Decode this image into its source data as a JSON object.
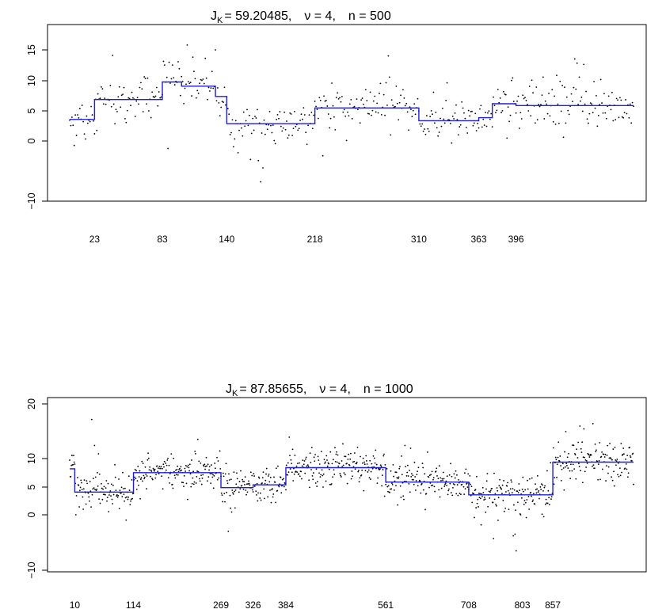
{
  "chart_data": [
    {
      "type": "scatter",
      "title_parts": {
        "j_label": "J",
        "j_sub": "K",
        "j_value": "= 59.20485,",
        "nu_label": "ν = 4,",
        "n_label": "n = 500"
      },
      "n": 500,
      "ylim": [
        -10,
        18
      ],
      "yticks": [
        -10,
        0,
        5,
        10,
        15
      ],
      "ytick_labels": [
        "−10",
        "0",
        "5",
        "10",
        "15"
      ],
      "changepoints": [
        23,
        83,
        140,
        218,
        310,
        363,
        396
      ],
      "changepoint_labels": [
        "23",
        "83",
        "140",
        "218",
        "310",
        "363",
        "396"
      ],
      "segments": [
        {
          "start": 1,
          "end": 23,
          "mean": 3.5
        },
        {
          "start": 23,
          "end": 83,
          "mean": 6.8
        },
        {
          "start": 83,
          "end": 100,
          "mean": 9.7
        },
        {
          "start": 100,
          "end": 130,
          "mean": 9.0
        },
        {
          "start": 130,
          "end": 140,
          "mean": 7.3
        },
        {
          "start": 140,
          "end": 218,
          "mean": 2.8
        },
        {
          "start": 218,
          "end": 310,
          "mean": 5.4
        },
        {
          "start": 310,
          "end": 363,
          "mean": 3.3
        },
        {
          "start": 363,
          "end": 375,
          "mean": 3.8
        },
        {
          "start": 375,
          "end": 396,
          "mean": 6.1
        },
        {
          "start": 396,
          "end": 500,
          "mean": 5.8
        }
      ],
      "noise_sd": 1.6,
      "outliers": [
        [
          150,
          -2.0
        ],
        [
          168,
          -3.3
        ],
        [
          170,
          -6.8
        ],
        [
          172,
          -4.5
        ],
        [
          183,
          -0.5
        ],
        [
          225,
          -2.5
        ],
        [
          233,
          9.5
        ],
        [
          283,
          14.0
        ],
        [
          284,
          10.5
        ],
        [
          290,
          9.0
        ],
        [
          323,
          8.0
        ],
        [
          420,
          10.5
        ],
        [
          432,
          10.8
        ],
        [
          435,
          9.8
        ],
        [
          448,
          13.5
        ],
        [
          450,
          12.8
        ],
        [
          452,
          10.5
        ],
        [
          456,
          12.6
        ],
        [
          105,
          15.8
        ],
        [
          110,
          13.8
        ],
        [
          121,
          13.6
        ],
        [
          130,
          15.0
        ],
        [
          5,
          -0.8
        ],
        [
          88,
          -1.3
        ],
        [
          92,
          12.5
        ],
        [
          143,
          1.0
        ],
        [
          146,
          -1.0
        ]
      ],
      "line_color": "#1f1fd0",
      "point_color": "#000000"
    },
    {
      "type": "scatter",
      "title_parts": {
        "j_label": "J",
        "j_sub": "K",
        "j_value": "= 87.85655,",
        "nu_label": "ν = 4,",
        "n_label": "n = 1000"
      },
      "n": 1000,
      "ylim": [
        -10,
        20
      ],
      "yticks": [
        -10,
        0,
        5,
        10,
        20
      ],
      "ytick_labels": [
        "−10",
        "0",
        "5",
        "10",
        "20"
      ],
      "changepoints": [
        10,
        114,
        269,
        326,
        384,
        561,
        708,
        803,
        857
      ],
      "changepoint_labels": [
        "10",
        "114",
        "269",
        "326",
        "384",
        "561",
        "708",
        "803",
        "857"
      ],
      "segments": [
        {
          "start": 1,
          "end": 10,
          "mean": 8.3
        },
        {
          "start": 10,
          "end": 114,
          "mean": 4.1
        },
        {
          "start": 114,
          "end": 269,
          "mean": 7.6
        },
        {
          "start": 269,
          "end": 326,
          "mean": 4.9
        },
        {
          "start": 326,
          "end": 384,
          "mean": 5.4
        },
        {
          "start": 384,
          "end": 561,
          "mean": 8.5
        },
        {
          "start": 561,
          "end": 708,
          "mean": 5.9
        },
        {
          "start": 708,
          "end": 857,
          "mean": 3.6
        },
        {
          "start": 857,
          "end": 1000,
          "mean": 9.5
        }
      ],
      "noise_sd": 1.7,
      "outliers": [
        [
          40,
          17.2
        ],
        [
          45,
          12.5
        ],
        [
          52,
          11.0
        ],
        [
          282,
          -3.0
        ],
        [
          288,
          0.5
        ],
        [
          390,
          14.0
        ],
        [
          595,
          12.5
        ],
        [
          605,
          12.0
        ],
        [
          760,
          -1.0
        ],
        [
          790,
          -3.5
        ],
        [
          792,
          -6.5
        ],
        [
          800,
          0.0
        ],
        [
          810,
          -0.5
        ],
        [
          815,
          1.0
        ],
        [
          880,
          15.0
        ],
        [
          905,
          16.0
        ],
        [
          912,
          15.5
        ],
        [
          940,
          13.0
        ],
        [
          12,
          0.0
        ],
        [
          25,
          1.0
        ]
      ],
      "line_color": "#1f1fd0",
      "point_color": "#000000"
    }
  ]
}
